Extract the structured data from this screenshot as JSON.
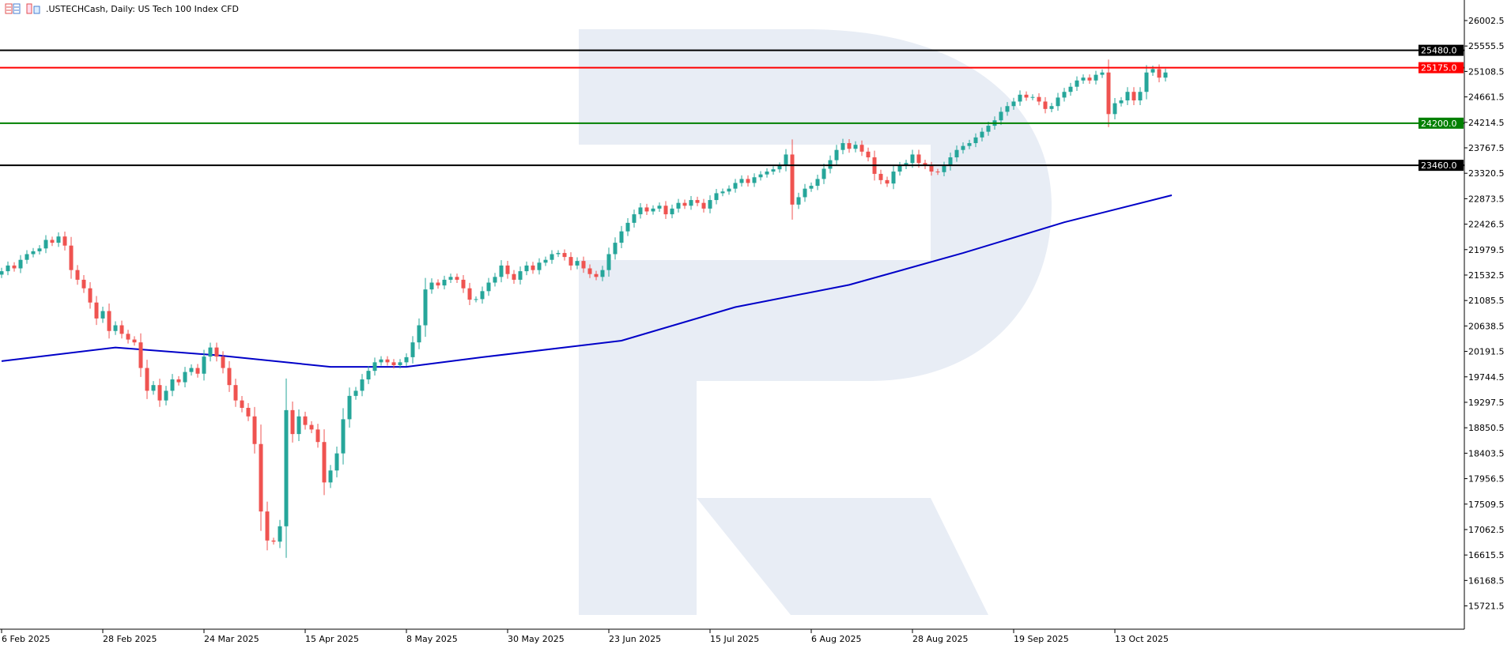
{
  "header": {
    "title": ".USTECHCash, Daily:  US Tech 100 Index CFD",
    "icons": [
      "chart-grid-icon",
      "data-window-icon"
    ]
  },
  "colors": {
    "bull": "#26a69a",
    "bear": "#ef5350",
    "moving_average": "#0000c8",
    "watermark": "#e8edf5"
  },
  "chart_data": {
    "type": "candlestick",
    "symbol": ".USTECHCash",
    "timeframe": "Daily",
    "ylim": [
      15500,
      26300
    ],
    "grid": false,
    "y_ticks": [
      "26002.5",
      "25555.5",
      "25108.5",
      "24661.5",
      "24214.5",
      "23767.5",
      "23320.5",
      "22873.5",
      "22426.5",
      "21979.5",
      "21532.5",
      "21085.5",
      "20638.5",
      "20191.5",
      "19744.5",
      "19297.5",
      "18850.5",
      "18403.5",
      "17956.5",
      "17509.5",
      "17062.5",
      "16615.5",
      "16168.5",
      "15721.5"
    ],
    "x_ticks": [
      {
        "label": "6 Feb 2025",
        "bar": 0
      },
      {
        "label": "28 Feb 2025",
        "bar": 16
      },
      {
        "label": "24 Mar 2025",
        "bar": 32
      },
      {
        "label": "15 Apr 2025",
        "bar": 48
      },
      {
        "label": "8 May 2025",
        "bar": 64
      },
      {
        "label": "30 May 2025",
        "bar": 80
      },
      {
        "label": "23 Jun 2025",
        "bar": 96
      },
      {
        "label": "15 Jul 2025",
        "bar": 112
      },
      {
        "label": "6 Aug 2025",
        "bar": 128
      },
      {
        "label": "28 Aug 2025",
        "bar": 144
      },
      {
        "label": "19 Sep 2025",
        "bar": 160
      },
      {
        "label": "13 Oct 2025",
        "bar": 176
      }
    ],
    "closes": [
      21600,
      21700,
      21650,
      21800,
      21900,
      21950,
      22000,
      22150,
      22100,
      22210,
      22050,
      21620,
      21450,
      21300,
      21050,
      20770,
      20900,
      20550,
      20650,
      20500,
      20400,
      20350,
      19900,
      19500,
      19600,
      19330,
      19500,
      19700,
      19650,
      19830,
      19900,
      19800,
      20100,
      20260,
      20100,
      19900,
      19600,
      19330,
      19200,
      19050,
      18565,
      17380,
      16870,
      16850,
      17120,
      19160,
      18740,
      19050,
      18900,
      18820,
      18600,
      17890,
      18100,
      18400,
      19000,
      19410,
      19500,
      19700,
      19850,
      20000,
      20050,
      20000,
      19950,
      20000,
      20090,
      20350,
      20650,
      21280,
      21400,
      21350,
      21450,
      21500,
      21450,
      21300,
      21100,
      21110,
      21250,
      21400,
      21500,
      21700,
      21550,
      21450,
      21600,
      21700,
      21620,
      21750,
      21800,
      21900,
      21920,
      21850,
      21700,
      21780,
      21650,
      21550,
      21500,
      21620,
      21900,
      22100,
      22300,
      22450,
      22600,
      22720,
      22650,
      22700,
      22750,
      22600,
      22700,
      22800,
      22750,
      22850,
      22800,
      22700,
      22850,
      22970,
      23000,
      23050,
      23150,
      23220,
      23150,
      23250,
      23300,
      23350,
      23390,
      23450,
      23650,
      22770,
      22900,
      23050,
      23100,
      23220,
      23400,
      23550,
      23730,
      23850,
      23750,
      23820,
      23700,
      23600,
      23310,
      23200,
      23140,
      23350,
      23450,
      23500,
      23650,
      23500,
      23450,
      23350,
      23340,
      23450,
      23600,
      23730,
      23800,
      23850,
      23950,
      24050,
      24155,
      24250,
      24400,
      24500,
      24580,
      24700,
      24650,
      24660,
      24580,
      24450,
      24500,
      24650,
      24750,
      24840,
      24950,
      25000,
      24950,
      25050,
      25090,
      24360,
      24550,
      24600,
      24750,
      24600,
      24750,
      25090,
      25150,
      25000,
      25090
    ],
    "moving_average": [
      [
        0,
        20020
      ],
      [
        18,
        20260
      ],
      [
        34,
        20124
      ],
      [
        52,
        19920
      ],
      [
        64,
        19920
      ],
      [
        76,
        20090
      ],
      [
        98,
        20380
      ],
      [
        116,
        20970
      ],
      [
        134,
        21360
      ],
      [
        152,
        21920
      ],
      [
        168,
        22460
      ],
      [
        185,
        22935
      ]
    ],
    "levels": [
      {
        "value": "25480.0",
        "price": 25480,
        "color": "#000000"
      },
      {
        "value": "25175.0",
        "price": 25175,
        "color": "#ff0000"
      },
      {
        "value": "24200.0",
        "price": 24200,
        "color": "#008000"
      },
      {
        "value": "23460.0",
        "price": 23460,
        "color": "#000000"
      }
    ]
  }
}
